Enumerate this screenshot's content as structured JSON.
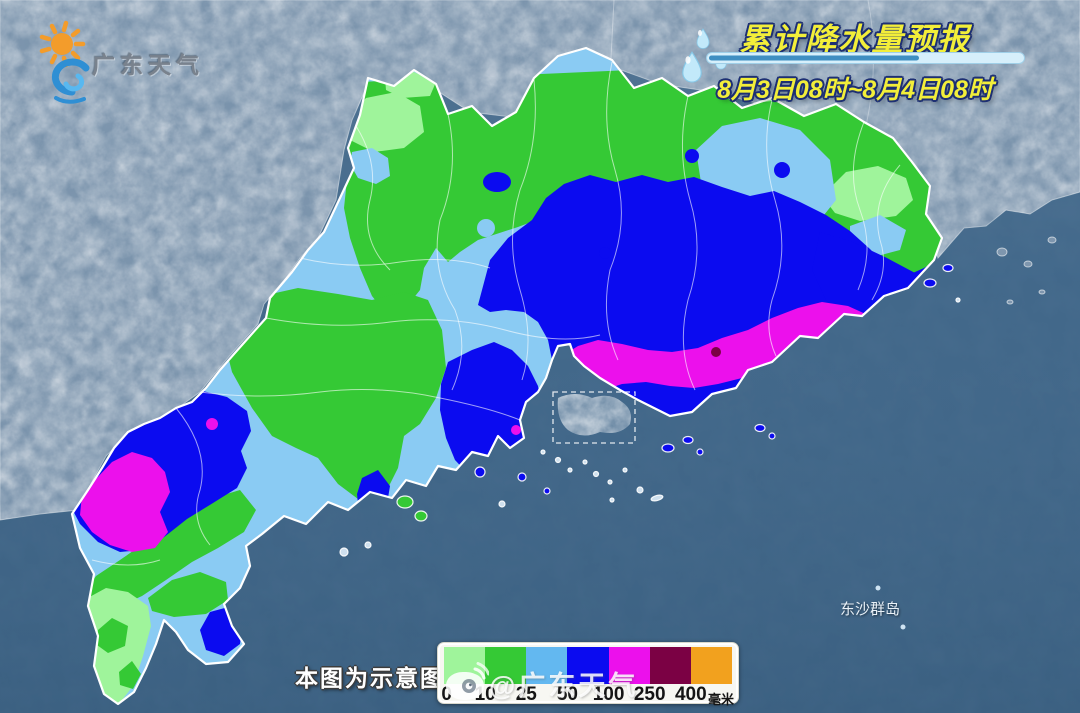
{
  "brand": {
    "logo_text": "广东天气"
  },
  "title_block": {
    "title": "累计降水量预报",
    "date_range": "8月3日08时~8月4日08时"
  },
  "map_labels": {
    "island_group": "东沙群岛",
    "disclaimer": "本图为示意图",
    "watermark": "@广东天气"
  },
  "legend": {
    "unit": "毫米",
    "ticks": [
      "0",
      "10",
      "25",
      "50",
      "100",
      "250",
      "400"
    ],
    "colors": [
      "#9FF49B",
      "#35C935",
      "#63B8F0",
      "#0B0BF0",
      "#EC10EC",
      "#7B0144",
      "#F2A11E"
    ]
  },
  "palette": {
    "ocean": "#3E6588",
    "terrain": "#7E96AE",
    "province_base": "#8ACBF3",
    "hk_terrain": "#6E8BA6",
    "bar_track": "#D6EFFB",
    "bar_fill": "#3F8FC2"
  }
}
